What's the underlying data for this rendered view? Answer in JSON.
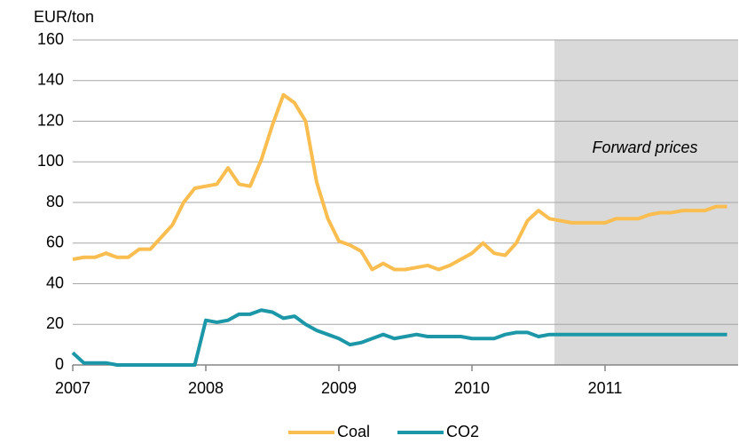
{
  "chart_data": {
    "type": "line",
    "y_label": "EUR/ton",
    "annotation": "Forward prices",
    "forward_region": [
      2010.62,
      2012
    ],
    "xlim": [
      2007,
      2012
    ],
    "xticks": [
      2007,
      2008,
      2009,
      2010,
      2011
    ],
    "ylim": [
      0,
      160
    ],
    "yticks": [
      0,
      20,
      40,
      60,
      80,
      100,
      120,
      140,
      160
    ],
    "grid": true,
    "legend": "bottom",
    "x": [
      2007,
      2007.083,
      2007.167,
      2007.25,
      2007.333,
      2007.417,
      2007.5,
      2007.583,
      2007.667,
      2007.75,
      2007.833,
      2007.917,
      2008,
      2008.083,
      2008.167,
      2008.25,
      2008.333,
      2008.417,
      2008.5,
      2008.583,
      2008.667,
      2008.75,
      2008.833,
      2008.917,
      2009,
      2009.083,
      2009.167,
      2009.25,
      2009.333,
      2009.417,
      2009.5,
      2009.583,
      2009.667,
      2009.75,
      2009.833,
      2009.917,
      2010,
      2010.083,
      2010.167,
      2010.25,
      2010.333,
      2010.417,
      2010.5,
      2010.583,
      2010.667,
      2010.75,
      2010.833,
      2010.917,
      2011,
      2011.083,
      2011.167,
      2011.25,
      2011.333,
      2011.417,
      2011.5,
      2011.583,
      2011.667,
      2011.75,
      2011.833,
      2011.917
    ],
    "series": [
      {
        "name": "Coal",
        "color": "#f9bd50",
        "values": [
          52,
          53,
          53,
          55,
          53,
          53,
          57,
          57,
          63,
          69,
          80,
          87,
          88,
          89,
          97,
          89,
          88,
          101,
          118,
          133,
          129,
          120,
          90,
          72,
          61,
          59,
          56,
          47,
          50,
          47,
          47,
          48,
          49,
          47,
          49,
          52,
          55,
          60,
          55,
          54,
          60,
          71,
          76,
          72,
          71,
          70,
          70,
          70,
          70,
          72,
          72,
          72,
          74,
          75,
          75,
          76,
          76,
          76,
          78,
          78
        ]
      },
      {
        "name": "CO2",
        "color": "#1c97a8",
        "values": [
          6,
          1,
          1,
          1,
          0,
          0,
          0,
          0,
          0,
          0,
          0,
          0,
          22,
          21,
          22,
          25,
          25,
          27,
          26,
          23,
          24,
          20,
          17,
          15,
          13,
          10,
          11,
          13,
          15,
          13,
          14,
          15,
          14,
          14,
          14,
          14,
          13,
          13,
          13,
          15,
          16,
          16,
          14,
          15,
          15,
          15,
          15,
          15,
          15,
          15,
          15,
          15,
          15,
          15,
          15,
          15,
          15,
          15,
          15,
          15
        ]
      }
    ]
  }
}
